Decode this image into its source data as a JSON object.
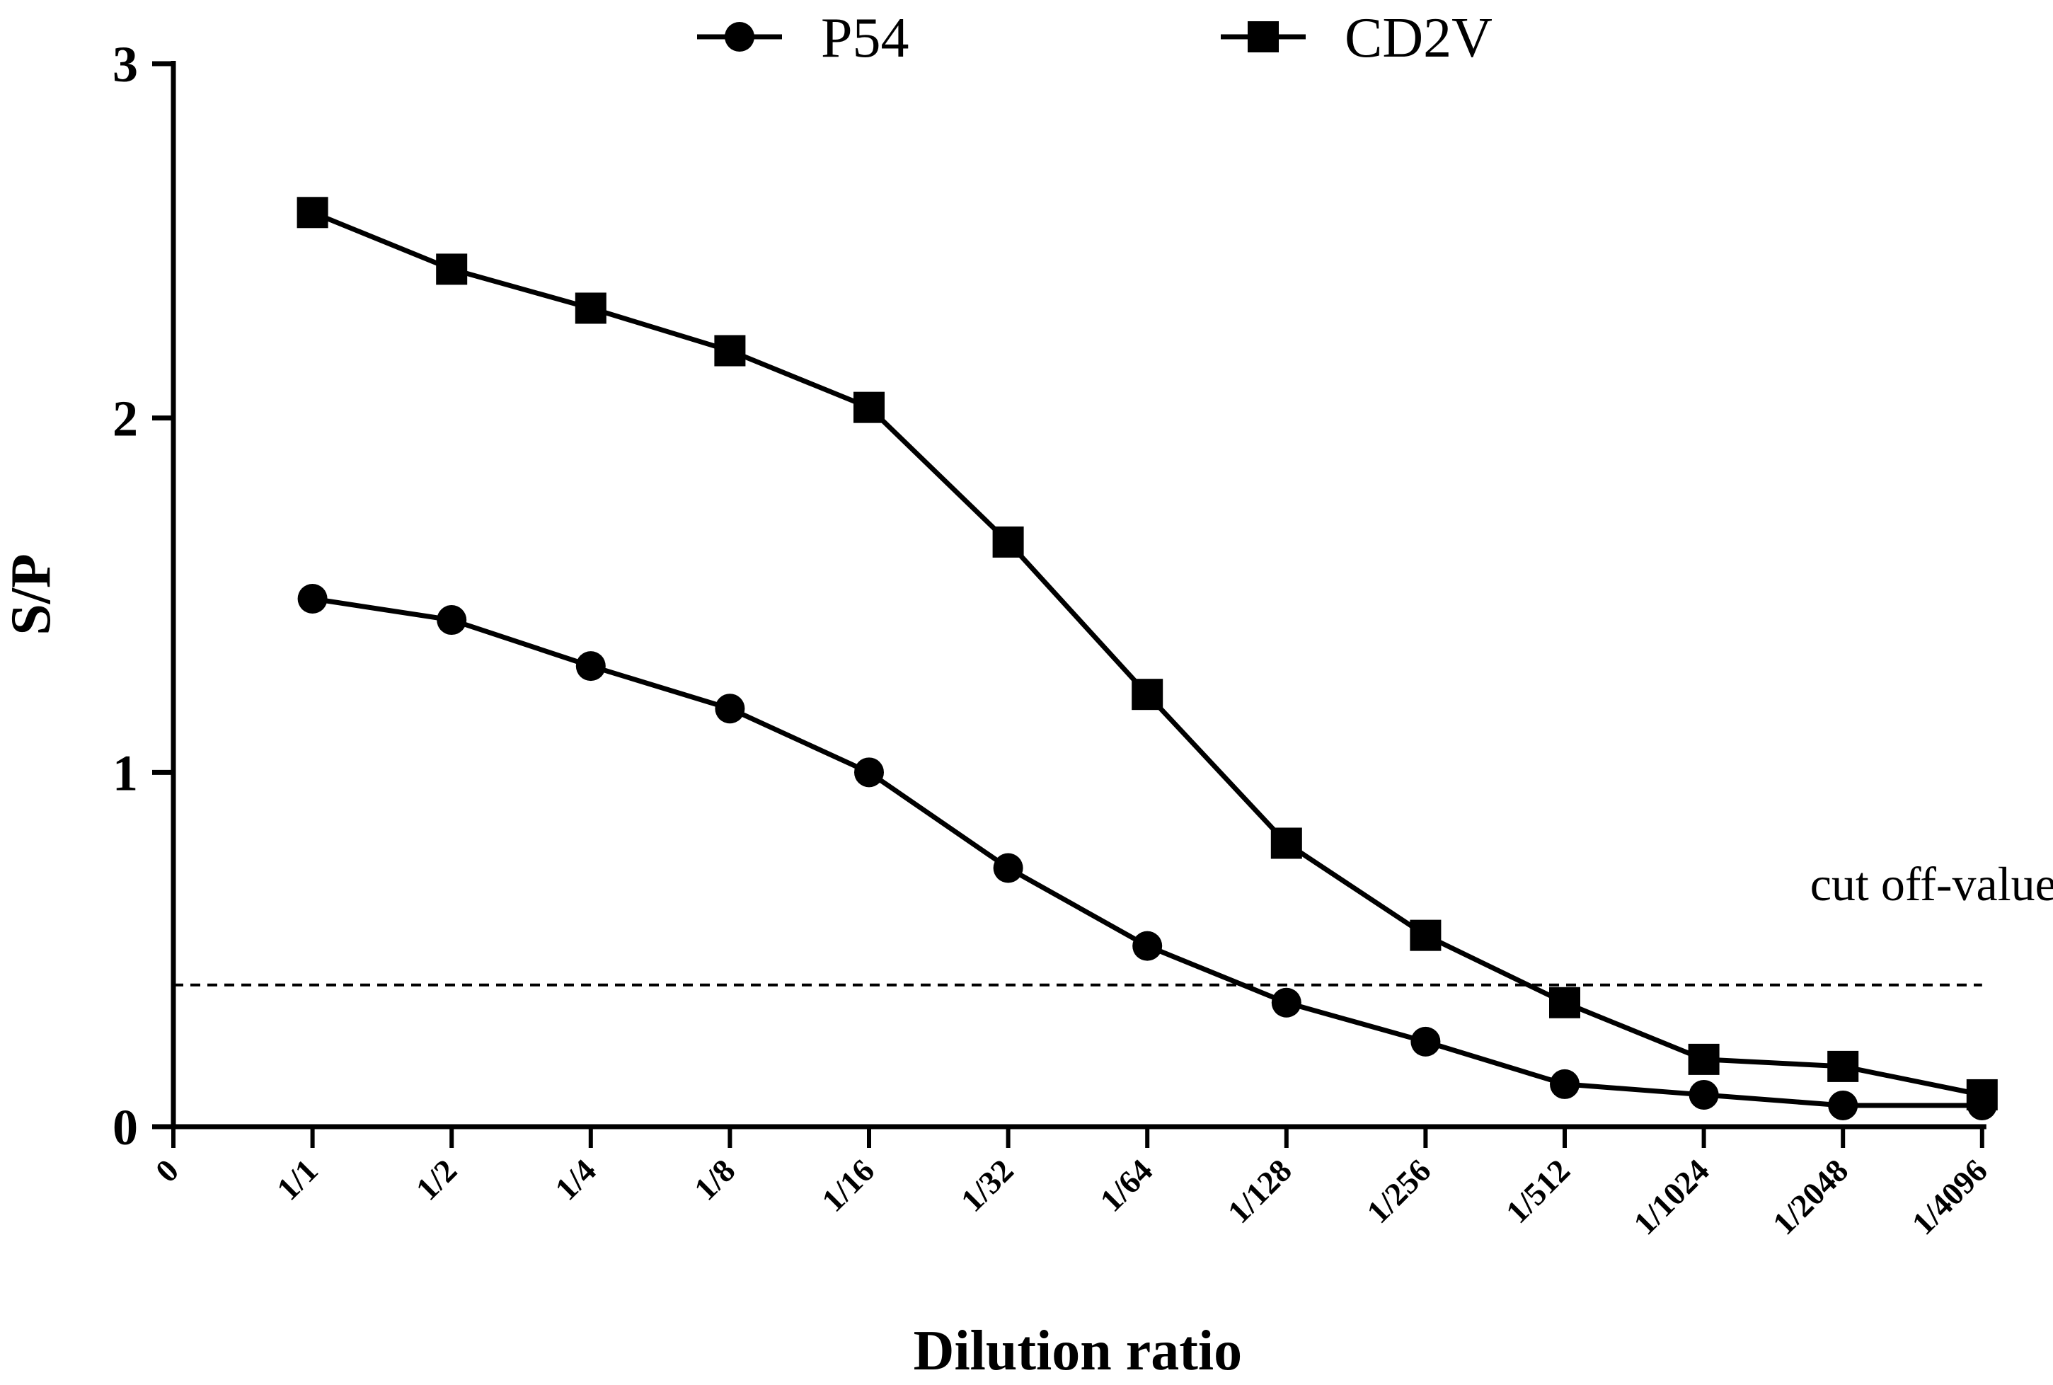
{
  "chart_data": {
    "type": "line",
    "title": "",
    "xlabel": "Dilution ratio",
    "ylabel": "S/P",
    "ylim": [
      0,
      3
    ],
    "yticks": [
      "0",
      "1",
      "2",
      "3"
    ],
    "categories": [
      "0",
      "1/1",
      "1/2",
      "1/4",
      "1/8",
      "1/16",
      "1/32",
      "1/64",
      "1/128",
      "1/256",
      "1/512",
      "1/1024",
      "1/2048",
      "1/4096"
    ],
    "grid": false,
    "legend": "top-center",
    "series": [
      {
        "name": "P54",
        "marker": "circle",
        "values": [
          null,
          1.49,
          1.43,
          1.3,
          1.18,
          1.0,
          0.73,
          0.51,
          0.35,
          0.24,
          0.12,
          0.09,
          0.06,
          0.06
        ]
      },
      {
        "name": "CD2V",
        "marker": "square",
        "values": [
          null,
          2.58,
          2.42,
          2.31,
          2.19,
          2.03,
          1.65,
          1.22,
          0.8,
          0.54,
          0.35,
          0.19,
          0.17,
          0.09
        ]
      }
    ],
    "reference_line": {
      "label": "cut off-value",
      "value": 0.4,
      "style": "dashed"
    },
    "colors": {
      "line": "#000000",
      "background": "#ffffff"
    }
  }
}
